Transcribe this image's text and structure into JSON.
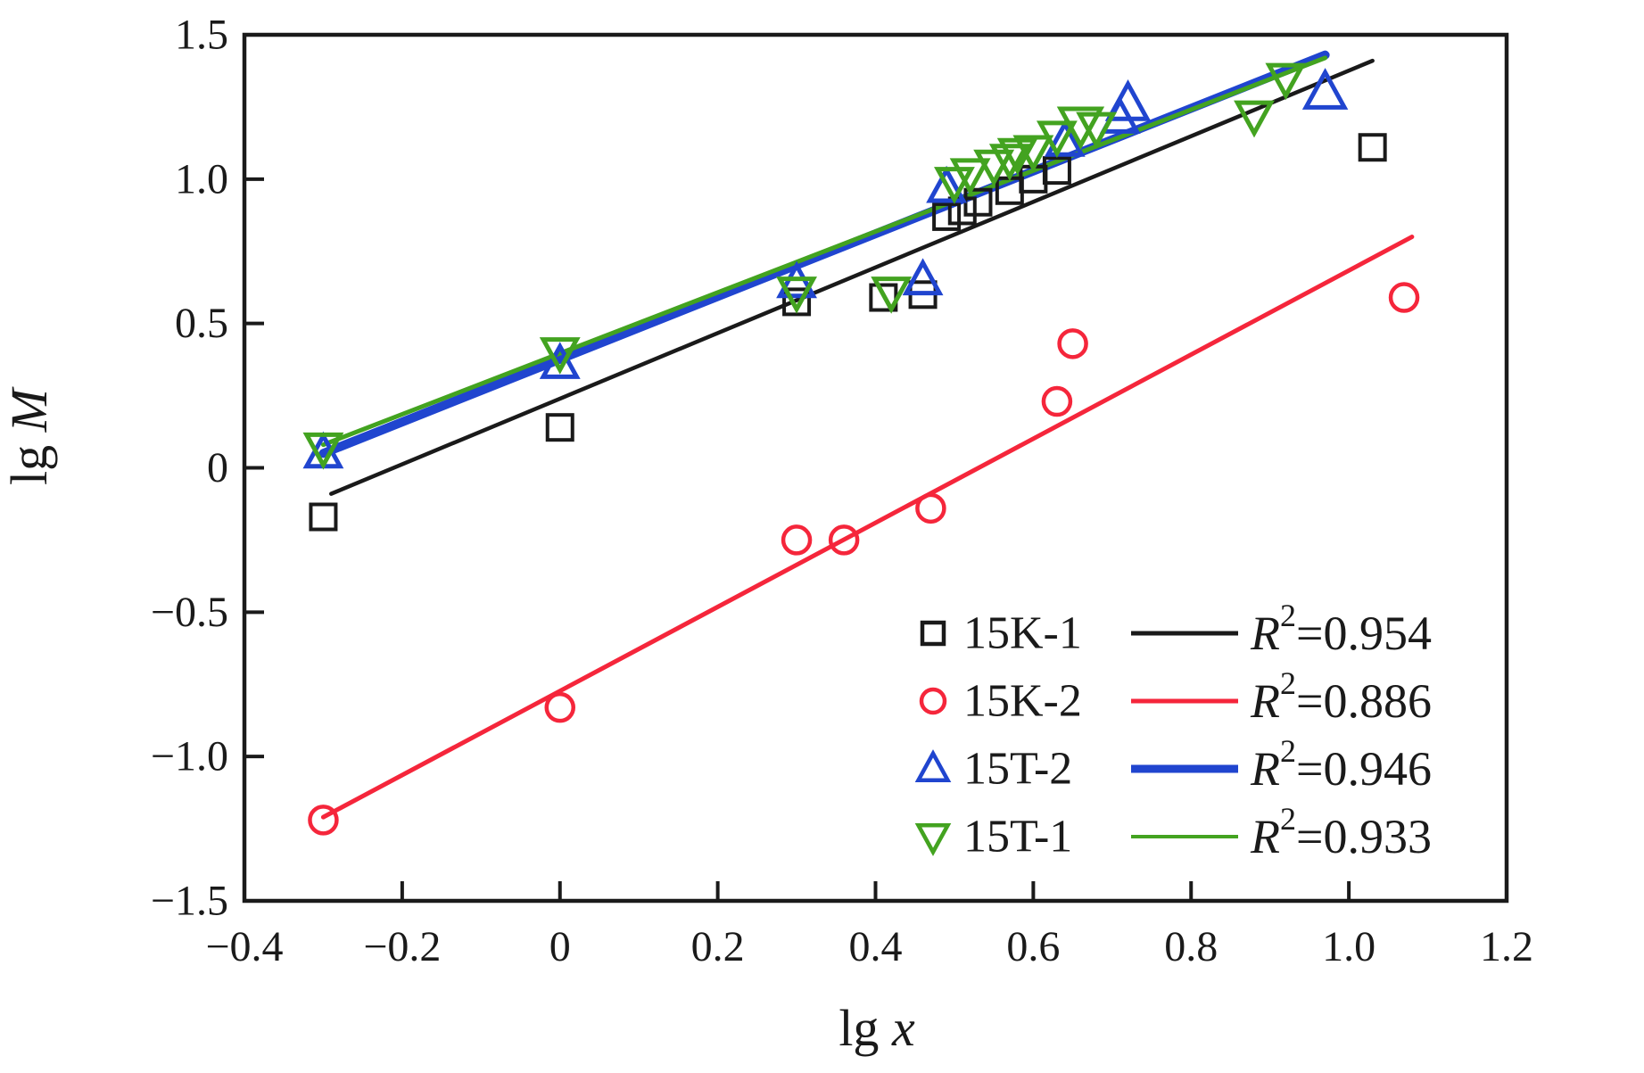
{
  "figure": {
    "background": "#ffffff"
  },
  "colors": {
    "frame": "#1a1a1a",
    "black_series": "#1a1a1a",
    "red_series": "#f5263b",
    "blue_series": "#2045cf",
    "green_series": "#43a320"
  },
  "chart_data": {
    "type": "scatter",
    "title": "",
    "xlabel_prefix": "lg ",
    "xlabel_var": "x",
    "ylabel_prefix": "lg ",
    "ylabel_var": "M",
    "xlim": [
      -0.4,
      1.2
    ],
    "ylim": [
      -1.5,
      1.5
    ],
    "grid": false,
    "x_ticks": [
      -0.4,
      -0.2,
      0,
      0.2,
      0.4,
      0.6,
      0.8,
      1.0,
      1.2
    ],
    "x_tick_labels": [
      "−0.4",
      "−0.2",
      "0",
      "0.2",
      "0.4",
      "0.6",
      "0.8",
      "1.0",
      "1.2"
    ],
    "y_ticks": [
      -1.5,
      -1.0,
      -0.5,
      0,
      0.5,
      1.0,
      1.5
    ],
    "y_tick_labels": [
      "−1.5",
      "−1.0",
      "−0.5",
      "0",
      "0.5",
      "1.0",
      "1.5"
    ],
    "series": [
      {
        "name": "15K-1",
        "marker": "square",
        "color": "#1a1a1a",
        "marker_size": 28,
        "marker_stroke": 4,
        "r2_value": 0.954,
        "points": [
          [
            -0.3,
            -0.17
          ],
          [
            0.0,
            0.14
          ],
          [
            0.3,
            0.575
          ],
          [
            0.41,
            0.59
          ],
          [
            0.46,
            0.6
          ],
          [
            0.49,
            0.87
          ],
          [
            0.51,
            0.89
          ],
          [
            0.53,
            0.92
          ],
          [
            0.57,
            0.96
          ],
          [
            0.6,
            1.0
          ],
          [
            0.63,
            1.03
          ],
          [
            1.03,
            1.11
          ]
        ],
        "fit_line": {
          "x1": -0.29,
          "y1": -0.09,
          "x2": 1.03,
          "y2": 1.41,
          "width": 4.5
        }
      },
      {
        "name": "15K-2",
        "marker": "circle",
        "color": "#f5263b",
        "marker_size": 30,
        "marker_stroke": 4.5,
        "r2_value": 0.886,
        "points": [
          [
            -0.3,
            -1.22
          ],
          [
            0.0,
            -0.83
          ],
          [
            0.3,
            -0.25
          ],
          [
            0.36,
            -0.25
          ],
          [
            0.47,
            -0.14
          ],
          [
            0.63,
            0.23
          ],
          [
            0.65,
            0.43
          ],
          [
            1.07,
            0.59
          ]
        ],
        "fit_line": {
          "x1": -0.3,
          "y1": -1.21,
          "x2": 1.08,
          "y2": 0.8,
          "width": 5
        }
      },
      {
        "name": "15T-2",
        "marker": "triangle-up",
        "color": "#2045cf",
        "marker_size": 34,
        "marker_stroke": 5,
        "r2_value": 0.946,
        "points": [
          [
            -0.3,
            0.05
          ],
          [
            0.0,
            0.36
          ],
          [
            0.3,
            0.64
          ],
          [
            0.46,
            0.65
          ],
          [
            0.49,
            0.97
          ],
          [
            0.64,
            1.13
          ],
          [
            0.71,
            1.21
          ],
          [
            0.72,
            1.26,
            1.15
          ],
          [
            0.97,
            1.3,
            1.15
          ]
        ],
        "fit_line": {
          "x1": -0.3,
          "y1": 0.05,
          "x2": 0.97,
          "y2": 1.43,
          "width": 10
        }
      },
      {
        "name": "15T-1",
        "marker": "triangle-down",
        "color": "#43a320",
        "marker_size": 34,
        "marker_stroke": 5,
        "r2_value": 0.933,
        "points": [
          [
            -0.3,
            0.07
          ],
          [
            0.0,
            0.4
          ],
          [
            0.3,
            0.61
          ],
          [
            0.42,
            0.61
          ],
          [
            0.5,
            0.99
          ],
          [
            0.52,
            1.02
          ],
          [
            0.55,
            1.05
          ],
          [
            0.57,
            1.07
          ],
          [
            0.58,
            1.09
          ],
          [
            0.6,
            1.1
          ],
          [
            0.63,
            1.15
          ],
          [
            0.66,
            1.19,
            1.2
          ],
          [
            0.68,
            1.18
          ],
          [
            0.88,
            1.22
          ],
          [
            0.92,
            1.35
          ]
        ],
        "fit_line": {
          "x1": -0.3,
          "y1": 0.08,
          "x2": 0.97,
          "y2": 1.42,
          "width": 5
        }
      }
    ],
    "legend": {
      "position": "inside-bottom-right",
      "rows": [
        {
          "label": "15K-1",
          "marker": "square",
          "color": "#1a1a1a",
          "line_width": 5,
          "r2_r": "R",
          "r2_sup": "2",
          "r2_rest": "=0.954"
        },
        {
          "label": "15K-2",
          "marker": "circle",
          "color": "#f5263b",
          "line_width": 5,
          "r2_r": "R",
          "r2_sup": "2",
          "r2_rest": "=0.886"
        },
        {
          "label": "15T-2",
          "marker": "triangle-up",
          "color": "#2045cf",
          "line_width": 9,
          "r2_r": "R",
          "r2_sup": "2",
          "r2_rest": "=0.946"
        },
        {
          "label": "15T-1",
          "marker": "triangle-down",
          "color": "#43a320",
          "line_width": 4,
          "r2_r": "R",
          "r2_sup": "2",
          "r2_rest": "=0.933"
        }
      ]
    }
  }
}
